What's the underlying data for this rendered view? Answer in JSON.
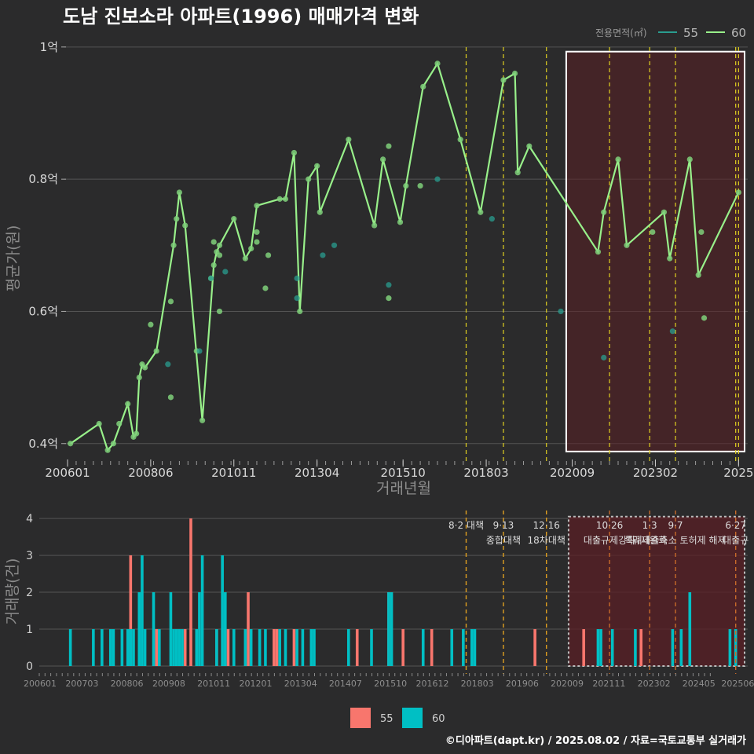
{
  "title": "도남 진보소라 아파트(1996) 매매가격 변화",
  "legend": {
    "title": "전용면적(㎡)",
    "items": [
      "55",
      "60"
    ]
  },
  "colors": {
    "area55_line": "#2a9d8f",
    "area60_line": "#98f08a",
    "bar55": "#f8766d",
    "bar60": "#00bfc4",
    "highlight": "#5a1f24"
  },
  "price_axis_label": "평균가(원)",
  "volume_axis_label": "거래량(건)",
  "x_axis_label": "거래년월",
  "footer": "©디아파트(dapt.kr) / 2025.08.02 / 자료=국토교통부 실거래가",
  "chart_data": [
    {
      "type": "line",
      "x_unit": "year-month",
      "ylabel": "평균가(원)",
      "xlabel": "거래년월",
      "ylim": [
        0.37,
        1.02
      ],
      "y_ticks": [
        0.4,
        0.6,
        0.8,
        1.0
      ],
      "y_tick_labels": [
        "0.4억",
        "0.6억",
        "0.8억",
        "1억"
      ],
      "x_ticks": [
        "2006-01",
        "2008-06",
        "2010-11",
        "2013-04",
        "2015-10",
        "2018-03",
        "2020-09",
        "2023-02",
        "2025-07"
      ],
      "x_tick_labels": [
        "200601",
        "200806",
        "201011",
        "201304",
        "201510",
        "201803",
        "202009",
        "202302",
        "2025"
      ],
      "highlight_range": [
        "2020-08",
        "2025-08"
      ],
      "event_lines": [
        "2017-08",
        "2018-09",
        "2019-12",
        "2021-10",
        "2022-12",
        "2023-09",
        "2025-06",
        "2025-07"
      ],
      "series": [
        {
          "name": "60",
          "line": true,
          "points": [
            [
              "2006-02",
              0.4
            ],
            [
              "2006-12",
              0.43
            ],
            [
              "2007-03",
              0.39
            ],
            [
              "2007-05",
              0.4
            ],
            [
              "2007-10",
              0.46
            ],
            [
              "2007-12",
              0.41
            ],
            [
              "2008-01",
              0.415
            ],
            [
              "2008-02",
              0.5
            ],
            [
              "2008-03",
              0.52
            ],
            [
              "2008-04",
              0.515
            ],
            [
              "2008-08",
              0.54
            ],
            [
              "2009-02",
              0.7
            ],
            [
              "2009-03",
              0.74
            ],
            [
              "2009-04",
              0.78
            ],
            [
              "2009-06",
              0.73
            ],
            [
              "2009-12",
              0.435
            ],
            [
              "2010-04",
              0.67
            ],
            [
              "2010-05",
              0.69
            ],
            [
              "2010-06",
              0.7
            ],
            [
              "2010-11",
              0.74
            ],
            [
              "2011-03",
              0.68
            ],
            [
              "2011-05",
              0.695
            ],
            [
              "2011-07",
              0.76
            ],
            [
              "2012-03",
              0.77
            ],
            [
              "2012-05",
              0.77
            ],
            [
              "2012-08",
              0.84
            ],
            [
              "2012-10",
              0.6
            ],
            [
              "2013-01",
              0.8
            ],
            [
              "2013-04",
              0.82
            ],
            [
              "2013-05",
              0.75
            ],
            [
              "2014-03",
              0.86
            ],
            [
              "2014-12",
              0.73
            ],
            [
              "2015-03",
              0.83
            ],
            [
              "2015-09",
              0.735
            ],
            [
              "2015-11",
              0.79
            ],
            [
              "2016-05",
              0.94
            ],
            [
              "2016-10",
              0.975
            ],
            [
              "2017-06",
              0.86
            ],
            [
              "2018-01",
              0.75
            ],
            [
              "2018-09",
              0.95
            ],
            [
              "2019-01",
              0.96
            ],
            [
              "2019-02",
              0.81
            ],
            [
              "2019-06",
              0.85
            ],
            [
              "2021-06",
              0.69
            ],
            [
              "2021-08",
              0.75
            ],
            [
              "2022-01",
              0.83
            ],
            [
              "2022-04",
              0.7
            ],
            [
              "2023-05",
              0.75
            ],
            [
              "2023-07",
              0.68
            ],
            [
              "2024-02",
              0.83
            ],
            [
              "2024-05",
              0.655
            ],
            [
              "2025-07",
              0.78
            ]
          ]
        },
        {
          "name": "60 scatter",
          "line": false,
          "points": [
            [
              "2007-07",
              0.43
            ],
            [
              "2008-06",
              0.58
            ],
            [
              "2009-01",
              0.47
            ],
            [
              "2009-01",
              0.615
            ],
            [
              "2009-10",
              0.54
            ],
            [
              "2010-03",
              0.65
            ],
            [
              "2010-04",
              0.705
            ],
            [
              "2010-06",
              0.6
            ],
            [
              "2010-06",
              0.685
            ],
            [
              "2011-07",
              0.705
            ],
            [
              "2011-07",
              0.72
            ],
            [
              "2011-10",
              0.635
            ],
            [
              "2011-11",
              0.685
            ],
            [
              "2015-05",
              0.62
            ],
            [
              "2015-05",
              0.85
            ],
            [
              "2016-04",
              0.79
            ],
            [
              "2023-01",
              0.72
            ],
            [
              "2024-07",
              0.59
            ],
            [
              "2024-06",
              0.72
            ]
          ]
        },
        {
          "name": "55",
          "line": false,
          "points": [
            [
              "2008-12",
              0.52
            ],
            [
              "2009-11",
              0.54
            ],
            [
              "2010-03",
              0.65
            ],
            [
              "2010-08",
              0.66
            ],
            [
              "2012-09",
              0.62
            ],
            [
              "2012-09",
              0.65
            ],
            [
              "2013-06",
              0.685
            ],
            [
              "2013-10",
              0.7
            ],
            [
              "2015-05",
              0.64
            ],
            [
              "2016-10",
              0.8
            ],
            [
              "2018-05",
              0.74
            ],
            [
              "2020-05",
              0.6
            ],
            [
              "2021-08",
              0.53
            ],
            [
              "2023-08",
              0.57
            ]
          ]
        }
      ]
    },
    {
      "type": "bar",
      "ylabel": "거래량(건)",
      "ylim": [
        0,
        4.3
      ],
      "y_ticks": [
        0,
        1,
        2,
        3,
        4
      ],
      "x_tick_labels": [
        "200601",
        "200703",
        "200806",
        "200908",
        "201011",
        "201201",
        "201304",
        "201407",
        "201510",
        "201612",
        "201803",
        "201906",
        "202009",
        "202111",
        "202302",
        "202405",
        "202506"
      ],
      "x_ticks": [
        "2006-01",
        "2007-03",
        "2008-06",
        "2009-08",
        "2010-11",
        "2012-01",
        "2013-04",
        "2014-07",
        "2015-10",
        "2016-12",
        "2018-03",
        "2019-06",
        "2020-09",
        "2021-11",
        "2023-02",
        "2024-05",
        "2025-06"
      ],
      "highlight_range": [
        "2020-08",
        "2025-08"
      ],
      "events": [
        {
          "date": "2017-08",
          "label1": "8·2 대책",
          "label2": ""
        },
        {
          "date": "2018-09",
          "label1": "9·13",
          "label2": "종합대책"
        },
        {
          "date": "2019-12",
          "label1": "12·16",
          "label2": "18차대책"
        },
        {
          "date": "2021-10",
          "label1": "10·26",
          "label2": "대출규제강화"
        },
        {
          "date": "2022-12",
          "label1": "1·3",
          "label2": "규제완화"
        },
        {
          "date": "2023-09",
          "label1": "9·7",
          "label2": "특례대출축소 토허제 해제"
        },
        {
          "date": "2025-06",
          "label1": "6·27",
          "label2": "대출규"
        }
      ],
      "series": [
        {
          "name": "55",
          "points": [
            [
              "2007-11",
              3
            ],
            [
              "2008-08",
              1
            ],
            [
              "2009-06",
              1
            ],
            [
              "2009-08",
              4
            ],
            [
              "2010-05",
              1
            ],
            [
              "2010-09",
              1
            ],
            [
              "2011-04",
              2
            ],
            [
              "2012-01",
              1
            ],
            [
              "2012-02",
              1
            ],
            [
              "2012-08",
              1
            ],
            [
              "2014-06",
              1
            ],
            [
              "2015-05",
              2
            ],
            [
              "2015-10",
              1
            ],
            [
              "2016-08",
              1
            ],
            [
              "2019-08",
              1
            ],
            [
              "2021-01",
              1
            ],
            [
              "2022-09",
              1
            ]
          ]
        },
        {
          "name": "60",
          "points": [
            [
              "2006-02",
              1
            ],
            [
              "2006-10",
              1
            ],
            [
              "2007-01",
              1
            ],
            [
              "2007-04",
              1
            ],
            [
              "2007-05",
              1
            ],
            [
              "2007-08",
              1
            ],
            [
              "2007-10",
              1
            ],
            [
              "2007-11",
              1
            ],
            [
              "2007-12",
              1
            ],
            [
              "2008-02",
              2
            ],
            [
              "2008-03",
              3
            ],
            [
              "2008-04",
              1
            ],
            [
              "2008-07",
              2
            ],
            [
              "2008-09",
              1
            ],
            [
              "2009-01",
              2
            ],
            [
              "2009-02",
              1
            ],
            [
              "2009-03",
              1
            ],
            [
              "2009-04",
              1
            ],
            [
              "2009-05",
              1
            ],
            [
              "2009-10",
              1
            ],
            [
              "2009-11",
              2
            ],
            [
              "2009-12",
              3
            ],
            [
              "2010-05",
              1
            ],
            [
              "2010-07",
              3
            ],
            [
              "2010-08",
              2
            ],
            [
              "2010-11",
              1
            ],
            [
              "2011-03",
              1
            ],
            [
              "2011-05",
              1
            ],
            [
              "2011-08",
              1
            ],
            [
              "2011-10",
              1
            ],
            [
              "2012-03",
              1
            ],
            [
              "2012-05",
              1
            ],
            [
              "2012-09",
              1
            ],
            [
              "2012-11",
              1
            ],
            [
              "2013-02",
              1
            ],
            [
              "2013-03",
              1
            ],
            [
              "2014-03",
              1
            ],
            [
              "2014-11",
              1
            ],
            [
              "2015-05",
              2
            ],
            [
              "2015-06",
              2
            ],
            [
              "2016-05",
              1
            ],
            [
              "2017-03",
              1
            ],
            [
              "2017-07",
              1
            ],
            [
              "2017-10",
              1
            ],
            [
              "2017-11",
              1
            ],
            [
              "2021-06",
              1
            ],
            [
              "2021-07",
              1
            ],
            [
              "2021-11",
              1
            ],
            [
              "2022-07",
              1
            ],
            [
              "2023-08",
              1
            ],
            [
              "2023-11",
              1
            ],
            [
              "2024-02",
              2
            ],
            [
              "2025-04",
              1
            ],
            [
              "2025-06",
              1
            ]
          ]
        }
      ]
    }
  ]
}
